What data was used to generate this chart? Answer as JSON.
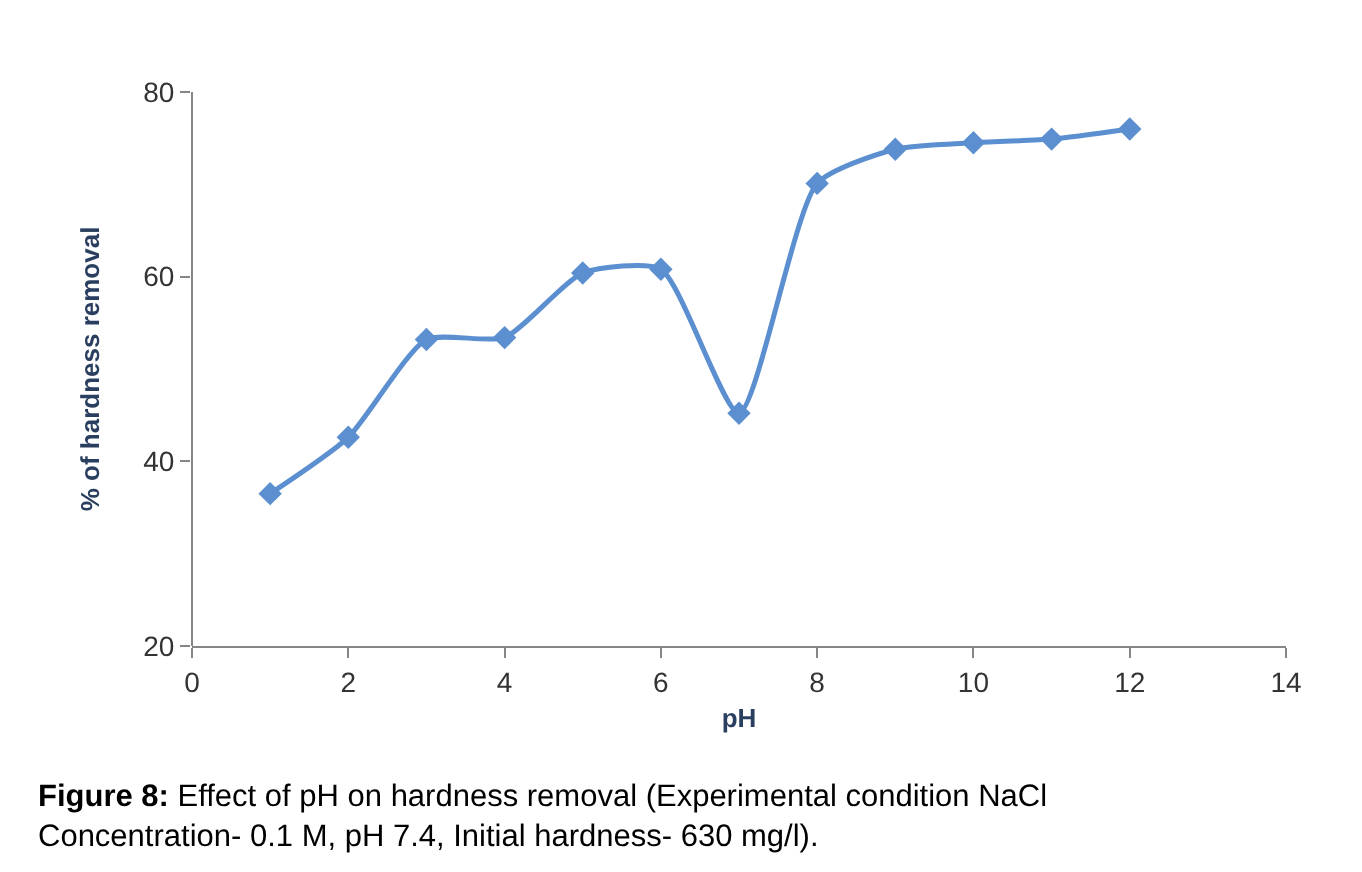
{
  "chart_data": {
    "type": "line",
    "xlabel": "pH",
    "ylabel": "% of hardness removal",
    "x": [
      1,
      2,
      3,
      4,
      5,
      6,
      7,
      8,
      9,
      10,
      11,
      12
    ],
    "series": [
      {
        "color": "#5b8fd0",
        "values": [
          36.5,
          42.6,
          53.2,
          53.4,
          60.4,
          60.8,
          45.2,
          70.1,
          73.8,
          74.5,
          74.9,
          76.0
        ]
      }
    ],
    "xlim": [
      0,
      14
    ],
    "xticks": [
      0,
      2,
      4,
      6,
      8,
      10,
      12,
      14
    ],
    "ylim": [
      20,
      80
    ],
    "yticks": [
      20,
      40,
      60,
      80
    ],
    "marker": "diamond",
    "line_style": "solid",
    "annotations": [
      "Figure 8: Effect of pH on hardness removal (Experimental condition NaCl Concentration- 0.1 M, pH 7.4, Initial hardness- 630 mg/l)."
    ]
  }
}
